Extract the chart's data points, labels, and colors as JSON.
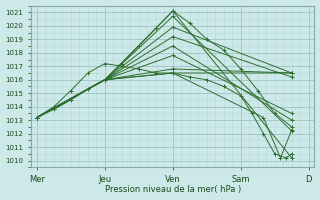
{
  "xlabel": "Pression niveau de la mer( hPa )",
  "bg_color": "#cce8e8",
  "plot_bg_color": "#cce8e8",
  "grid_color_minor": "#b8d8d8",
  "grid_color_major": "#99bbbb",
  "line_color": "#2d6e2d",
  "ylim": [
    1009.5,
    1021.5
  ],
  "yticks": [
    1010,
    1011,
    1012,
    1013,
    1014,
    1015,
    1016,
    1017,
    1018,
    1019,
    1020,
    1021
  ],
  "days": [
    "Mer",
    "Jeu",
    "Ven",
    "Sam",
    "D"
  ],
  "day_positions": [
    0,
    24,
    48,
    72,
    96
  ],
  "xlim": [
    -2,
    98
  ],
  "series": [
    {
      "x": [
        0,
        24,
        48,
        90
      ],
      "y": [
        1013.2,
        1016.0,
        1021.1,
        1010.2
      ]
    },
    {
      "x": [
        0,
        24,
        48,
        90
      ],
      "y": [
        1013.2,
        1016.0,
        1020.7,
        1012.2
      ]
    },
    {
      "x": [
        0,
        24,
        48,
        90
      ],
      "y": [
        1013.2,
        1016.0,
        1019.9,
        1016.5
      ]
    },
    {
      "x": [
        0,
        24,
        48,
        90
      ],
      "y": [
        1013.2,
        1016.0,
        1019.2,
        1016.2
      ]
    },
    {
      "x": [
        0,
        24,
        48,
        90
      ],
      "y": [
        1013.2,
        1016.0,
        1018.5,
        1013.0
      ]
    },
    {
      "x": [
        0,
        24,
        48,
        90
      ],
      "y": [
        1013.2,
        1016.0,
        1017.8,
        1013.5
      ]
    },
    {
      "x": [
        0,
        24,
        48,
        90
      ],
      "y": [
        1013.2,
        1016.0,
        1016.8,
        1016.5
      ]
    },
    {
      "x": [
        0,
        24,
        48,
        90
      ],
      "y": [
        1013.2,
        1016.0,
        1016.5,
        1016.5
      ]
    },
    {
      "x": [
        0,
        24,
        48,
        80,
        86,
        90
      ],
      "y": [
        1013.2,
        1016.0,
        1016.5,
        1013.2,
        1010.2,
        1012.3
      ]
    },
    {
      "x": [
        0,
        6,
        12,
        18,
        24,
        30,
        36,
        42,
        48,
        54,
        60,
        66,
        72,
        78,
        84,
        90
      ],
      "y": [
        1013.2,
        1013.8,
        1014.5,
        1015.3,
        1016.0,
        1017.2,
        1018.5,
        1019.8,
        1021.1,
        1020.2,
        1019.0,
        1018.2,
        1016.8,
        1015.2,
        1013.5,
        1012.5
      ]
    },
    {
      "x": [
        0,
        6,
        12,
        18,
        24,
        30,
        36,
        42,
        48,
        54,
        60,
        66,
        72,
        76,
        80,
        84,
        88,
        90
      ],
      "y": [
        1013.2,
        1014.0,
        1015.2,
        1016.5,
        1017.2,
        1017.0,
        1016.8,
        1016.5,
        1016.5,
        1016.2,
        1016.0,
        1015.5,
        1014.8,
        1013.5,
        1012.0,
        1010.5,
        1010.2,
        1010.5
      ]
    }
  ]
}
